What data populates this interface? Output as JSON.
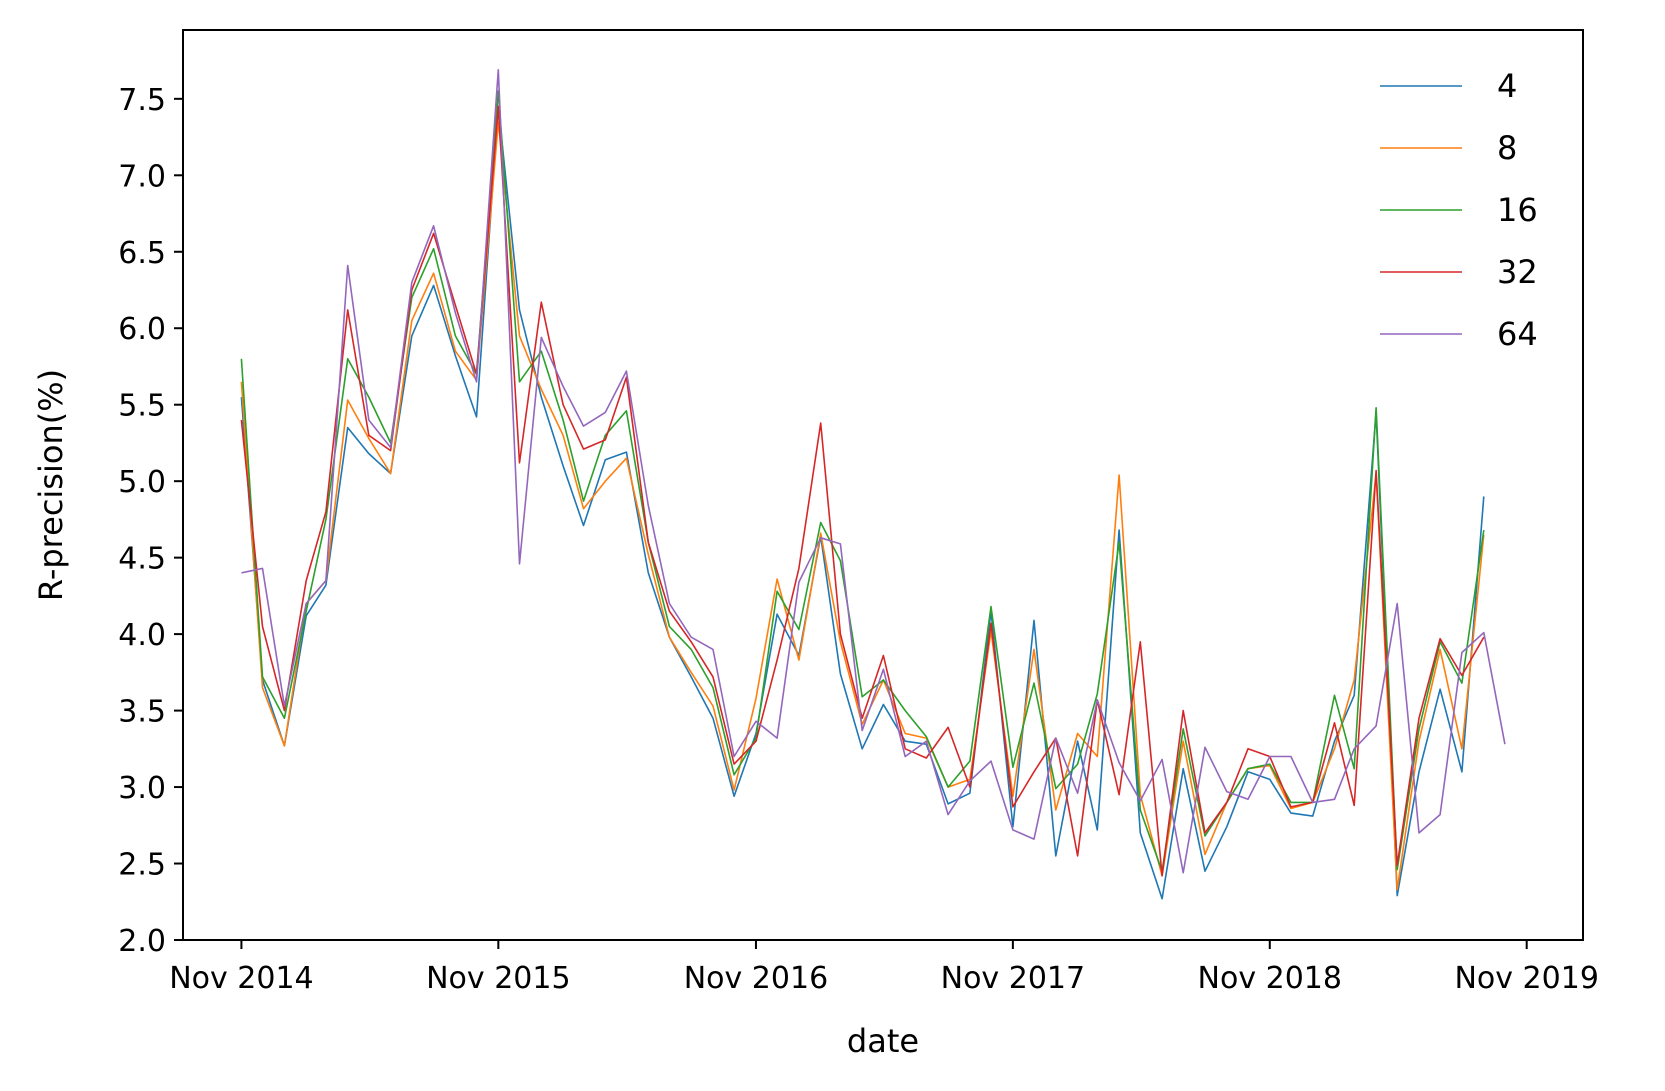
{
  "chart_data": {
    "type": "line",
    "title": "",
    "xlabel": "date",
    "ylabel": "R-precision(%)",
    "x_tick_labels": [
      "Nov 2014",
      "Nov 2015",
      "Nov 2016",
      "Nov 2017",
      "Nov 2018",
      "Nov 2019"
    ],
    "y_tick_labels": [
      "2.0",
      "2.5",
      "3.0",
      "3.5",
      "4.0",
      "4.5",
      "5.0",
      "5.5",
      "6.0",
      "6.5",
      "7.0",
      "7.5"
    ],
    "ylim": [
      2.0,
      7.95
    ],
    "xlim": [
      "2014-08-10",
      "2020-01-20"
    ],
    "grid": false,
    "legend_position": "top-right",
    "x": [
      "2014-11",
      "2014-12",
      "2015-01",
      "2015-02",
      "2015-03",
      "2015-04",
      "2015-05",
      "2015-06",
      "2015-07",
      "2015-08",
      "2015-09",
      "2015-10",
      "2015-11",
      "2015-12",
      "2016-01",
      "2016-02",
      "2016-03",
      "2016-04",
      "2016-05",
      "2016-06",
      "2016-07",
      "2016-08",
      "2016-09",
      "2016-10",
      "2016-11",
      "2016-12",
      "2017-01",
      "2017-02",
      "2017-03",
      "2017-04",
      "2017-05",
      "2017-06",
      "2017-07",
      "2017-08",
      "2017-09",
      "2017-10",
      "2017-11",
      "2017-12",
      "2018-01",
      "2018-02",
      "2018-03",
      "2018-04",
      "2018-05",
      "2018-06",
      "2018-07",
      "2018-08",
      "2018-09",
      "2018-10",
      "2018-11",
      "2018-12",
      "2019-01",
      "2019-02",
      "2019-03",
      "2019-04",
      "2019-05",
      "2019-06",
      "2019-07",
      "2019-08",
      "2019-09",
      "2019-10"
    ],
    "series": [
      {
        "name": "4",
        "color": "#1f77b4",
        "values": [
          5.55,
          3.7,
          3.27,
          4.12,
          4.32,
          5.35,
          5.18,
          5.05,
          5.95,
          6.28,
          5.82,
          5.42,
          7.45,
          6.12,
          5.55,
          5.1,
          4.71,
          5.14,
          5.19,
          4.4,
          3.98,
          3.72,
          3.45,
          2.94,
          3.35,
          4.13,
          3.86,
          4.64,
          3.74,
          3.25,
          3.54,
          3.3,
          3.28,
          2.89,
          2.96,
          4.15,
          2.74,
          4.09,
          2.55,
          3.3,
          2.72,
          4.68,
          2.7,
          2.27,
          3.12,
          2.45,
          2.74,
          3.1,
          3.05,
          2.83,
          2.81,
          3.3,
          3.6,
          5.45,
          2.29,
          3.1,
          3.64,
          3.1,
          4.9,
          null
        ]
      },
      {
        "name": "8",
        "color": "#ff7f0e",
        "values": [
          5.65,
          3.65,
          3.27,
          4.2,
          4.35,
          5.53,
          5.28,
          5.05,
          6.05,
          6.36,
          5.85,
          5.66,
          7.35,
          5.95,
          5.6,
          5.3,
          4.82,
          5.0,
          5.15,
          4.52,
          3.98,
          3.75,
          3.53,
          2.98,
          3.58,
          4.36,
          3.83,
          4.66,
          3.95,
          3.41,
          3.7,
          3.35,
          3.32,
          3.0,
          3.05,
          4.02,
          2.94,
          3.9,
          2.85,
          3.35,
          3.2,
          5.04,
          2.95,
          2.42,
          3.3,
          2.56,
          2.9,
          3.12,
          3.14,
          2.86,
          2.9,
          3.25,
          3.7,
          5.05,
          2.33,
          3.3,
          3.9,
          3.25,
          4.65,
          null
        ]
      },
      {
        "name": "16",
        "color": "#2ca02c",
        "values": [
          5.8,
          3.72,
          3.45,
          4.15,
          4.75,
          5.8,
          5.55,
          5.25,
          6.2,
          6.52,
          5.95,
          5.7,
          7.55,
          5.65,
          5.85,
          5.4,
          4.87,
          5.3,
          5.46,
          4.6,
          4.05,
          3.9,
          3.65,
          3.08,
          3.32,
          4.28,
          4.03,
          4.73,
          4.48,
          3.59,
          3.7,
          3.5,
          3.33,
          3.0,
          3.17,
          4.18,
          3.13,
          3.68,
          2.99,
          3.15,
          3.61,
          4.6,
          2.85,
          2.45,
          3.38,
          2.68,
          2.9,
          3.12,
          3.15,
          2.9,
          2.9,
          3.6,
          3.12,
          5.48,
          2.46,
          3.38,
          3.95,
          3.68,
          4.68,
          null
        ]
      },
      {
        "name": "32",
        "color": "#d62728",
        "values": [
          5.4,
          4.05,
          3.5,
          4.35,
          4.8,
          6.12,
          5.3,
          5.2,
          6.25,
          6.62,
          6.15,
          5.7,
          7.45,
          5.12,
          6.17,
          5.5,
          5.21,
          5.27,
          5.68,
          4.6,
          4.15,
          3.95,
          3.72,
          3.15,
          3.3,
          3.83,
          4.43,
          5.38,
          4.0,
          3.45,
          3.86,
          3.25,
          3.19,
          3.39,
          3.0,
          4.07,
          2.87,
          3.1,
          3.32,
          2.55,
          3.57,
          2.95,
          3.95,
          2.42,
          3.5,
          2.7,
          2.9,
          3.25,
          3.2,
          2.87,
          2.9,
          3.42,
          2.88,
          5.07,
          2.49,
          3.45,
          3.97,
          3.73,
          3.98,
          null
        ]
      },
      {
        "name": "64",
        "color": "#9467bd",
        "values": [
          4.4,
          4.43,
          3.53,
          4.2,
          4.35,
          6.41,
          5.4,
          5.22,
          6.3,
          6.67,
          6.1,
          5.65,
          7.69,
          4.46,
          5.94,
          5.62,
          5.36,
          5.45,
          5.72,
          4.84,
          4.2,
          3.98,
          3.9,
          3.2,
          3.43,
          3.32,
          4.34,
          4.63,
          4.59,
          3.37,
          3.77,
          3.2,
          3.3,
          2.82,
          3.04,
          3.17,
          2.72,
          2.66,
          3.32,
          2.96,
          3.57,
          3.16,
          2.91,
          3.18,
          2.44,
          3.26,
          2.97,
          2.92,
          3.2,
          3.2,
          2.9,
          2.92,
          3.25,
          3.4,
          4.2,
          2.7,
          2.82,
          3.88,
          4.01,
          3.28
        ]
      }
    ]
  }
}
